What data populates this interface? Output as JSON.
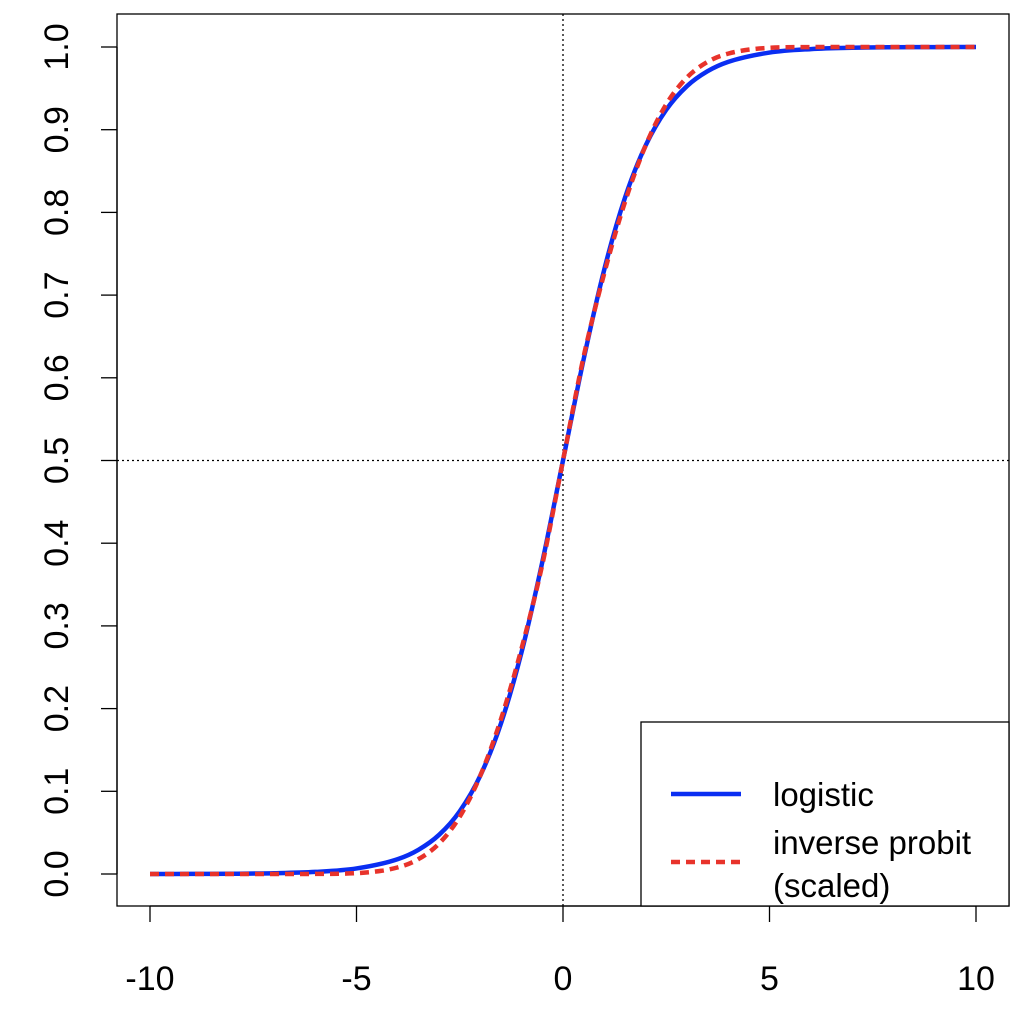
{
  "chart_data": {
    "type": "line",
    "title": "",
    "xlabel": "",
    "ylabel": "",
    "xlim": [
      -10,
      10
    ],
    "ylim": [
      0,
      1
    ],
    "xticks": [
      "-10",
      "-5",
      "0",
      "5",
      "10"
    ],
    "yticks": [
      "0.0",
      "0.1",
      "0.2",
      "0.3",
      "0.4",
      "0.5",
      "0.6",
      "0.7",
      "0.8",
      "0.9",
      "1.0"
    ],
    "grid": false,
    "legend_position": "bottom-right",
    "reference_lines": [
      {
        "axis": "x",
        "value": 0,
        "style": "dotted"
      },
      {
        "axis": "y",
        "value": 0.5,
        "style": "dotted"
      }
    ],
    "series": [
      {
        "name": "logistic",
        "color": "#0a2ef2",
        "style": "solid",
        "x": [
          -10,
          -9,
          -8,
          -7,
          -6,
          -5,
          -4,
          -3.5,
          -3,
          -2.5,
          -2,
          -1.5,
          -1,
          -0.5,
          0,
          0.5,
          1,
          1.5,
          2,
          2.5,
          3,
          3.5,
          4,
          5,
          6,
          7,
          8,
          9,
          10
        ],
        "y": [
          0.0,
          0.0001,
          0.0003,
          0.0009,
          0.0025,
          0.0067,
          0.018,
          0.0293,
          0.0474,
          0.0759,
          0.1192,
          0.1824,
          0.2689,
          0.3775,
          0.5,
          0.6225,
          0.7311,
          0.8176,
          0.8808,
          0.9241,
          0.9526,
          0.9707,
          0.982,
          0.9933,
          0.9975,
          0.9991,
          0.9997,
          0.9999,
          1.0
        ]
      },
      {
        "name": "inverse probit\n(scaled)",
        "color": "#e8332b",
        "style": "dashed",
        "x": [
          -10,
          -9,
          -8,
          -7,
          -6,
          -5,
          -4,
          -3.5,
          -3,
          -2.5,
          -2,
          -1.5,
          -1,
          -0.5,
          0,
          0.5,
          1,
          1.5,
          2,
          2.5,
          3,
          3.5,
          4,
          5,
          6,
          7,
          8,
          9,
          10
        ],
        "y": [
          0.0,
          0.0,
          0.0,
          0.0,
          0.0001,
          0.001,
          0.008,
          0.018,
          0.0369,
          0.0693,
          0.1192,
          0.1875,
          0.2734,
          0.3744,
          0.5,
          0.6256,
          0.7266,
          0.8125,
          0.8808,
          0.9307,
          0.9631,
          0.982,
          0.992,
          0.999,
          0.9999,
          1.0,
          1.0,
          1.0,
          1.0
        ]
      }
    ],
    "legend": {
      "entries": [
        {
          "label": "logistic",
          "color": "#0a2ef2",
          "style": "solid"
        },
        {
          "label_lines": [
            "inverse probit",
            "(scaled)"
          ],
          "color": "#e8332b",
          "style": "dashed"
        }
      ]
    }
  }
}
